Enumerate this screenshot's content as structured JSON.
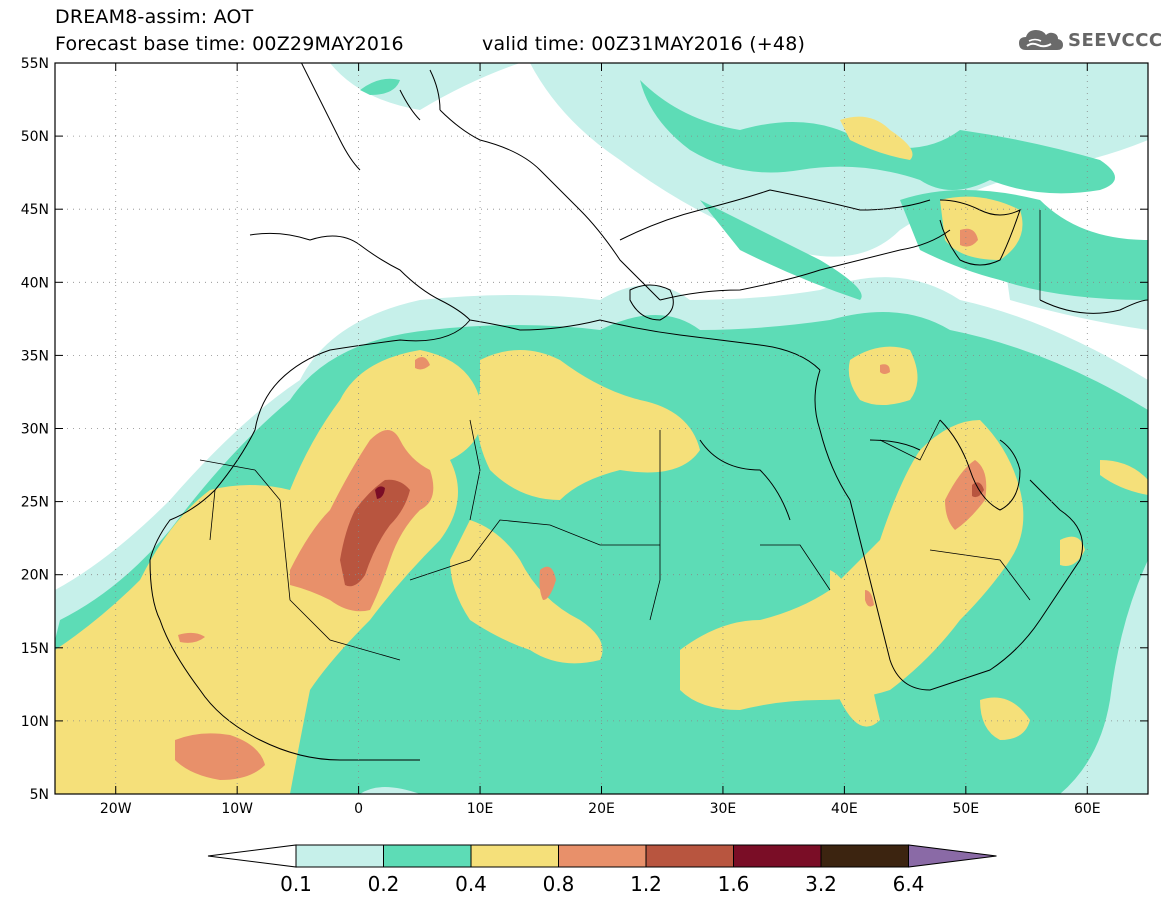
{
  "header": {
    "line1": "DREAM8-assim: AOT",
    "line2_left": "Forecast base time: 00Z29MAY2016",
    "line2_right": "valid time: 00Z31MAY2016 (+48)"
  },
  "logo": {
    "text": "SEEVCCC",
    "icon": "cloud-icon",
    "color": "#666666"
  },
  "map": {
    "lon_range": [
      -25,
      65
    ],
    "lat_range": [
      5,
      55
    ],
    "lat_ticks": [
      {
        "v": 55,
        "label": "55N"
      },
      {
        "v": 50,
        "label": "50N"
      },
      {
        "v": 45,
        "label": "45N"
      },
      {
        "v": 40,
        "label": "40N"
      },
      {
        "v": 35,
        "label": "35N"
      },
      {
        "v": 30,
        "label": "30N"
      },
      {
        "v": 25,
        "label": "25N"
      },
      {
        "v": 20,
        "label": "20N"
      },
      {
        "v": 15,
        "label": "15N"
      },
      {
        "v": 10,
        "label": "10N"
      },
      {
        "v": 5,
        "label": "5N"
      }
    ],
    "lon_ticks": [
      {
        "v": -20,
        "label": "20W"
      },
      {
        "v": -10,
        "label": "10W"
      },
      {
        "v": 0,
        "label": "0"
      },
      {
        "v": 10,
        "label": "10E"
      },
      {
        "v": 20,
        "label": "20E"
      },
      {
        "v": 30,
        "label": "30E"
      },
      {
        "v": 40,
        "label": "40E"
      },
      {
        "v": 50,
        "label": "50E"
      },
      {
        "v": 60,
        "label": "60E"
      }
    ]
  },
  "colorbar": {
    "labels": [
      "0.1",
      "0.2",
      "0.4",
      "0.8",
      "1.2",
      "1.6",
      "3.2",
      "6.4"
    ],
    "colors": [
      "#c6f0ea",
      "#5ddcb6",
      "#f5e07a",
      "#e8906a",
      "#b8553f",
      "#7a0d26",
      "#3c2410"
    ],
    "over_color": "#8a6aa6",
    "under_color": "#ffffff"
  },
  "colors": {
    "c01": "#c6f0ea",
    "c02": "#5ddcb6",
    "c04": "#f5e07a",
    "c08": "#e8906a",
    "c12": "#b8553f",
    "c16": "#7a0d26"
  }
}
